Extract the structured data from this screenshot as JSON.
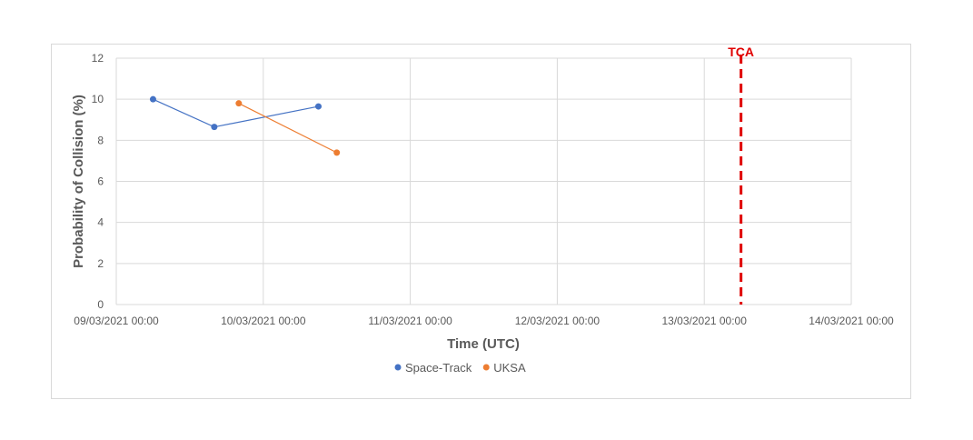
{
  "chart_data": {
    "type": "scatter",
    "mode": "lines+markers",
    "xlabel": "Time (UTC)",
    "ylabel": "Probability of Collision (%)",
    "x_axis": {
      "min": "09/03/2021 00:00",
      "max": "14/03/2021 00:00",
      "ticks": [
        "09/03/2021 00:00",
        "10/03/2021 00:00",
        "11/03/2021 00:00",
        "12/03/2021 00:00",
        "13/03/2021 00:00",
        "14/03/2021 00:00"
      ]
    },
    "y_axis": {
      "min": 0,
      "max": 12,
      "ticks": [
        0,
        2,
        4,
        6,
        8,
        10,
        12
      ]
    },
    "grid": true,
    "legend_position": "bottom",
    "series": [
      {
        "name": "Space-Track",
        "color": "#4472c4",
        "points": [
          {
            "x": "09/03/2021 06:00",
            "y": 10.0
          },
          {
            "x": "09/03/2021 16:00",
            "y": 8.65
          },
          {
            "x": "10/03/2021 09:00",
            "y": 9.65
          }
        ]
      },
      {
        "name": "UKSA",
        "color": "#ed7d31",
        "points": [
          {
            "x": "09/03/2021 20:00",
            "y": 9.8
          },
          {
            "x": "10/03/2021 12:00",
            "y": 7.4
          }
        ]
      }
    ],
    "annotations": [
      {
        "label": "TCA",
        "x": "13/03/2021 06:00",
        "color": "#e00000",
        "style": "dashed-vertical-line"
      }
    ]
  }
}
